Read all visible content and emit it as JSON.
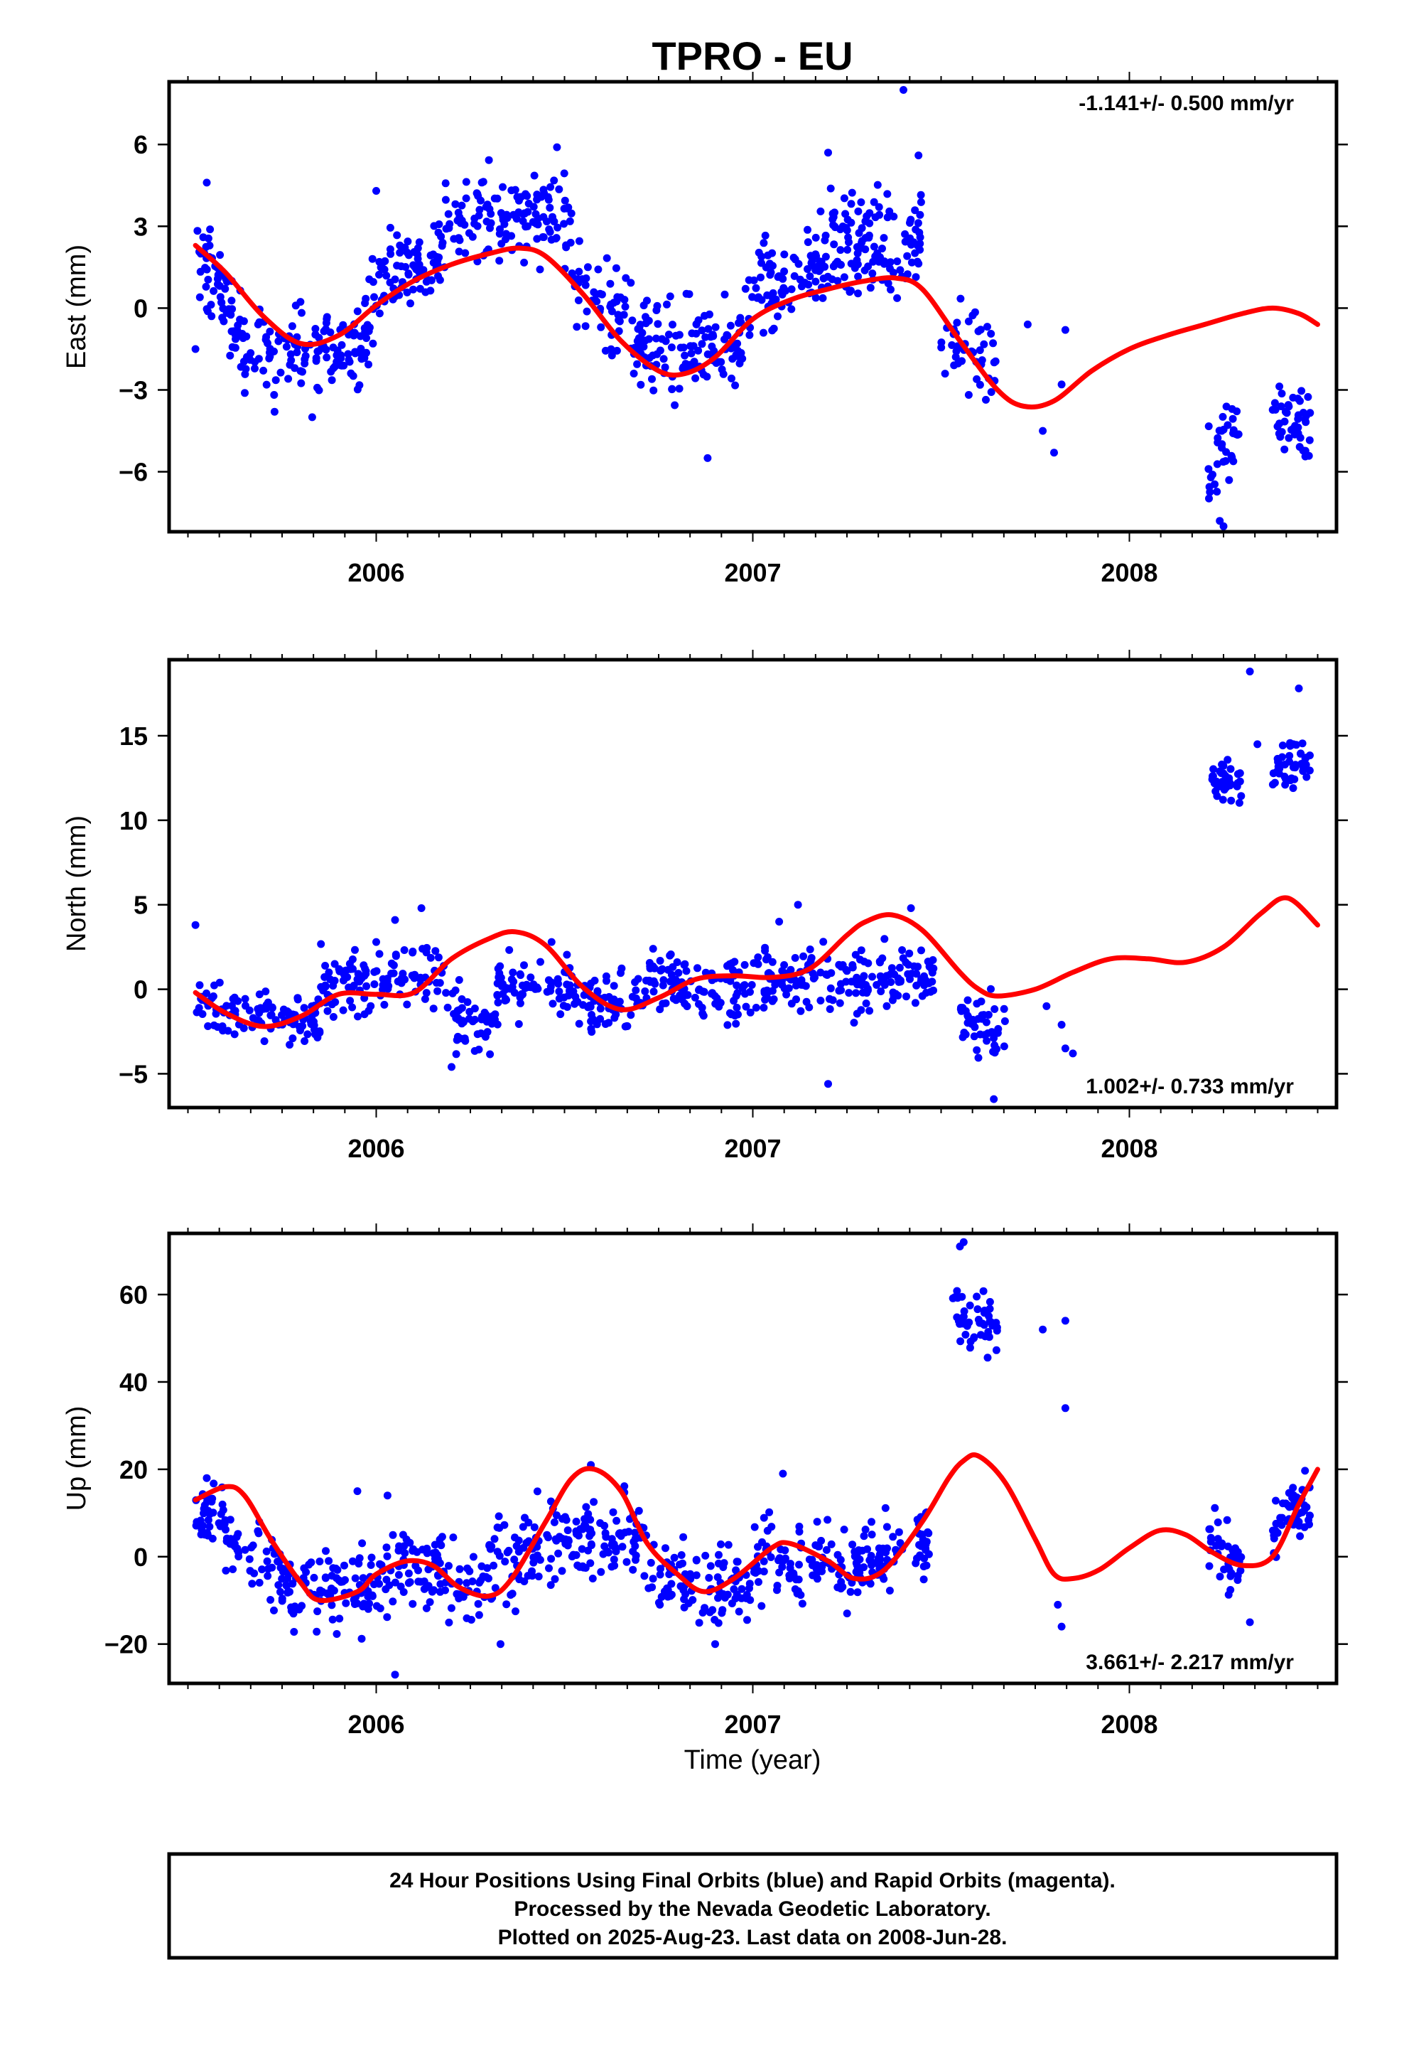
{
  "title": "TPRO - EU",
  "colors": {
    "data": "#0000ff",
    "model": "#ff0000",
    "frame": "#000000"
  },
  "xlabel": "Time (year)",
  "x_ticks": [
    "2006",
    "2007",
    "2008"
  ],
  "footer": {
    "line1": "24 Hour Positions Using Final Orbits (blue) and Rapid Orbits (magenta).",
    "line2": "Processed by the Nevada Geodetic Laboratory.",
    "line3": "Plotted on 2025-Aug-23. Last data on 2008-Jun-28."
  },
  "chart_data": [
    {
      "type": "scatter",
      "ylabel": "East (mm)",
      "rate": "-1.141+/- 0.500 mm/yr",
      "rate_position": "top-right",
      "xlim": [
        2005.45,
        2008.55
      ],
      "ylim": [
        -8.2,
        8.3
      ],
      "y_ticks": [
        6,
        3,
        0,
        -3,
        -6
      ],
      "y_tick_labels": [
        "6",
        "3",
        "0",
        "−3",
        "−6"
      ],
      "model_x": [
        2005.52,
        2005.6,
        2005.7,
        2005.8,
        2005.9,
        2006.0,
        2006.1,
        2006.2,
        2006.3,
        2006.38,
        2006.45,
        2006.55,
        2006.65,
        2006.75,
        2006.82,
        2006.9,
        2007.0,
        2007.1,
        2007.2,
        2007.3,
        2007.38,
        2007.45,
        2007.55,
        2007.65,
        2007.72,
        2007.8,
        2007.9,
        2008.0,
        2008.1,
        2008.2,
        2008.3,
        2008.38,
        2008.45,
        2008.5
      ],
      "model_y": [
        2.3,
        1.3,
        -0.3,
        -1.3,
        -1.0,
        0.1,
        1.0,
        1.6,
        2.0,
        2.2,
        1.9,
        0.5,
        -1.2,
        -2.3,
        -2.4,
        -1.8,
        -0.4,
        0.3,
        0.7,
        1.0,
        1.1,
        0.7,
        -1.2,
        -3.0,
        -3.6,
        -3.4,
        -2.3,
        -1.5,
        -1.0,
        -0.6,
        -0.2,
        0.0,
        -0.2,
        -0.6
      ],
      "data_groups": [
        {
          "x": [
            2005.52,
            2005.64
          ],
          "y": [
            1.8,
            -0.5
          ],
          "n": 60,
          "spread": 1.0
        },
        {
          "x": [
            2005.64,
            2005.98
          ],
          "y": [
            -1.6,
            -1.3
          ],
          "n": 130,
          "spread": 0.9
        },
        {
          "x": [
            2005.98,
            2006.18
          ],
          "y": [
            0.6,
            2.2
          ],
          "n": 85,
          "spread": 1.1
        },
        {
          "x": [
            2006.18,
            2006.52
          ],
          "y": [
            3.2,
            3.5
          ],
          "n": 130,
          "spread": 1.0
        },
        {
          "x": [
            2006.52,
            2006.72
          ],
          "y": [
            0.8,
            -1.2
          ],
          "n": 80,
          "spread": 1.1
        },
        {
          "x": [
            2006.72,
            2006.98
          ],
          "y": [
            -1.8,
            -1.5
          ],
          "n": 100,
          "spread": 1.1
        },
        {
          "x": [
            2006.98,
            2007.2
          ],
          "y": [
            0.3,
            2.0
          ],
          "n": 90,
          "spread": 1.1
        },
        {
          "x": [
            2007.2,
            2007.45
          ],
          "y": [
            2.2,
            2.5
          ],
          "n": 120,
          "spread": 1.1
        },
        {
          "x": [
            2007.5,
            2007.65
          ],
          "y": [
            -0.8,
            -2.2
          ],
          "n": 45,
          "spread": 0.9
        },
        {
          "x": [
            2008.21,
            2008.3
          ],
          "y": [
            -5.8,
            -4.0
          ],
          "n": 35,
          "spread": 1.0
        },
        {
          "x": [
            2008.38,
            2008.48
          ],
          "y": [
            -3.8,
            -4.4
          ],
          "n": 45,
          "spread": 0.9
        }
      ],
      "data_extra": {
        "x": [
          2005.52,
          2005.55,
          2005.73,
          2005.83,
          2006.0,
          2006.48,
          2006.88,
          2007.2,
          2007.4,
          2007.44,
          2007.73,
          2007.77,
          2007.8,
          2007.82,
          2007.83,
          2008.24,
          2008.25
        ],
        "y": [
          -1.5,
          4.6,
          -3.8,
          -4.0,
          4.3,
          5.9,
          -5.5,
          5.7,
          8.0,
          5.6,
          -0.6,
          -4.5,
          -5.3,
          -2.8,
          -0.8,
          -7.8,
          -8.0
        ]
      }
    },
    {
      "type": "scatter",
      "ylabel": "North (mm)",
      "rate": "1.002+/- 0.733 mm/yr",
      "rate_position": "bottom-right",
      "xlim": [
        2005.45,
        2008.55
      ],
      "ylim": [
        -7.0,
        19.5
      ],
      "y_ticks": [
        15,
        10,
        5,
        0,
        -5
      ],
      "y_tick_labels": [
        "15",
        "10",
        "5",
        "0",
        "−5"
      ],
      "model_x": [
        2005.52,
        2005.6,
        2005.7,
        2005.8,
        2005.9,
        2006.0,
        2006.1,
        2006.2,
        2006.3,
        2006.37,
        2006.45,
        2006.55,
        2006.65,
        2006.75,
        2006.85,
        2006.95,
        2007.05,
        2007.15,
        2007.25,
        2007.3,
        2007.37,
        2007.45,
        2007.55,
        2007.6,
        2007.65,
        2007.75,
        2007.85,
        2007.95,
        2008.05,
        2008.15,
        2008.25,
        2008.35,
        2008.42,
        2008.5
      ],
      "model_y": [
        -0.2,
        -1.4,
        -2.2,
        -1.6,
        -0.3,
        -0.3,
        -0.2,
        1.8,
        3.0,
        3.4,
        2.6,
        0.1,
        -1.2,
        -0.5,
        0.6,
        0.8,
        0.7,
        1.2,
        3.2,
        4.0,
        4.4,
        3.5,
        1.0,
        0.0,
        -0.4,
        0.0,
        1.0,
        1.8,
        1.8,
        1.6,
        2.5,
        4.5,
        5.4,
        3.8
      ],
      "data_groups": [
        {
          "x": [
            2005.52,
            2005.85
          ],
          "y": [
            -1.0,
            -1.8
          ],
          "n": 110,
          "spread": 1.0
        },
        {
          "x": [
            2005.85,
            2006.18
          ],
          "y": [
            0.3,
            1.0
          ],
          "n": 110,
          "spread": 1.3
        },
        {
          "x": [
            2006.18,
            2006.32
          ],
          "y": [
            -1.5,
            -2.5
          ],
          "n": 50,
          "spread": 1.0
        },
        {
          "x": [
            2006.32,
            2006.52
          ],
          "y": [
            0.0,
            0.5
          ],
          "n": 70,
          "spread": 1.1
        },
        {
          "x": [
            2006.52,
            2006.72
          ],
          "y": [
            -0.5,
            -0.8
          ],
          "n": 70,
          "spread": 1.0
        },
        {
          "x": [
            2006.72,
            2007.0
          ],
          "y": [
            0.6,
            0.0
          ],
          "n": 100,
          "spread": 1.2
        },
        {
          "x": [
            2007.0,
            2007.22
          ],
          "y": [
            0.5,
            0.2
          ],
          "n": 80,
          "spread": 1.3
        },
        {
          "x": [
            2007.22,
            2007.48
          ],
          "y": [
            0.2,
            0.8
          ],
          "n": 100,
          "spread": 1.1
        },
        {
          "x": [
            2007.55,
            2007.67
          ],
          "y": [
            -2.0,
            -2.7
          ],
          "n": 45,
          "spread": 1.1
        },
        {
          "x": [
            2008.22,
            2008.3
          ],
          "y": [
            12.5,
            12.4
          ],
          "n": 35,
          "spread": 0.7
        },
        {
          "x": [
            2008.38,
            2008.48
          ],
          "y": [
            13.2,
            13.5
          ],
          "n": 45,
          "spread": 0.9
        }
      ],
      "data_extra": {
        "x": [
          2005.52,
          2006.05,
          2006.12,
          2006.2,
          2007.07,
          2007.12,
          2007.2,
          2007.42,
          2007.64,
          2007.78,
          2007.82,
          2007.83,
          2007.85,
          2008.32,
          2008.34,
          2008.45
        ],
        "y": [
          3.8,
          4.1,
          4.8,
          -4.6,
          4.0,
          5.0,
          -5.6,
          4.8,
          -6.5,
          -1.0,
          -2.1,
          -3.5,
          -3.8,
          18.8,
          14.5,
          17.8
        ]
      }
    },
    {
      "type": "scatter",
      "ylabel": "Up (mm)",
      "rate": "3.661+/- 2.217 mm/yr",
      "rate_position": "bottom-right",
      "xlim": [
        2005.45,
        2008.55
      ],
      "ylim": [
        -29,
        74
      ],
      "y_ticks": [
        60,
        40,
        20,
        0,
        -20
      ],
      "y_tick_labels": [
        "60",
        "40",
        "20",
        "0",
        "−20"
      ],
      "model_x": [
        2005.52,
        2005.6,
        2005.65,
        2005.72,
        2005.8,
        2005.85,
        2005.95,
        2006.0,
        2006.08,
        2006.15,
        2006.22,
        2006.3,
        2006.36,
        2006.45,
        2006.52,
        2006.58,
        2006.65,
        2006.72,
        2006.8,
        2006.87,
        2006.95,
        2007.05,
        2007.1,
        2007.2,
        2007.27,
        2007.35,
        2007.45,
        2007.52,
        2007.56,
        2007.6,
        2007.67,
        2007.75,
        2007.8,
        2007.85,
        2007.92,
        2008.0,
        2008.08,
        2008.15,
        2008.22,
        2008.3,
        2008.38,
        2008.45,
        2008.5
      ],
      "model_y": [
        13,
        16,
        14,
        4,
        -6,
        -10,
        -8,
        -4,
        -1,
        -2,
        -7,
        -9,
        -5,
        8,
        18,
        20,
        15,
        3,
        -4,
        -8,
        -5,
        2,
        3,
        -1,
        -5,
        -3,
        8,
        18,
        22,
        23,
        17,
        4,
        -4,
        -5,
        -3,
        2,
        6,
        5,
        1,
        -2,
        0,
        12,
        20
      ],
      "data_groups": [
        {
          "x": [
            2005.52,
            2005.6
          ],
          "y": [
            9,
            10
          ],
          "n": 40,
          "spread": 4.5
        },
        {
          "x": [
            2005.6,
            2005.78
          ],
          "y": [
            4,
            -6
          ],
          "n": 60,
          "spread": 5.0
        },
        {
          "x": [
            2005.78,
            2006.05
          ],
          "y": [
            -8,
            -6
          ],
          "n": 100,
          "spread": 6.0
        },
        {
          "x": [
            2006.05,
            2006.3
          ],
          "y": [
            -2,
            -6
          ],
          "n": 90,
          "spread": 6.0
        },
        {
          "x": [
            2006.3,
            2006.5
          ],
          "y": [
            -2,
            4
          ],
          "n": 70,
          "spread": 6.0
        },
        {
          "x": [
            2006.5,
            2006.72
          ],
          "y": [
            5,
            3
          ],
          "n": 90,
          "spread": 5.5
        },
        {
          "x": [
            2006.72,
            2007.0
          ],
          "y": [
            -4,
            -7
          ],
          "n": 100,
          "spread": 5.5
        },
        {
          "x": [
            2007.0,
            2007.25
          ],
          "y": [
            0,
            -3
          ],
          "n": 90,
          "spread": 6.0
        },
        {
          "x": [
            2007.25,
            2007.47
          ],
          "y": [
            -4,
            5
          ],
          "n": 90,
          "spread": 5.5
        },
        {
          "x": [
            2007.53,
            2007.65
          ],
          "y": [
            55,
            53
          ],
          "n": 50,
          "spread": 4.5
        },
        {
          "x": [
            2008.21,
            2008.3
          ],
          "y": [
            2,
            -2
          ],
          "n": 35,
          "spread": 5.0
        },
        {
          "x": [
            2008.38,
            2008.48
          ],
          "y": [
            7,
            12
          ],
          "n": 45,
          "spread": 4.5
        }
      ],
      "data_extra": {
        "x": [
          2005.55,
          2005.95,
          2006.03,
          2006.05,
          2006.33,
          2006.57,
          2006.9,
          2007.08,
          2007.55,
          2007.56,
          2007.77,
          2007.81,
          2007.82,
          2007.83,
          2007.83,
          2008.32
        ],
        "y": [
          18,
          15,
          14,
          -27,
          -20,
          21,
          -20,
          19,
          71,
          72,
          52,
          -11,
          -16,
          54,
          34,
          -15
        ]
      }
    }
  ]
}
